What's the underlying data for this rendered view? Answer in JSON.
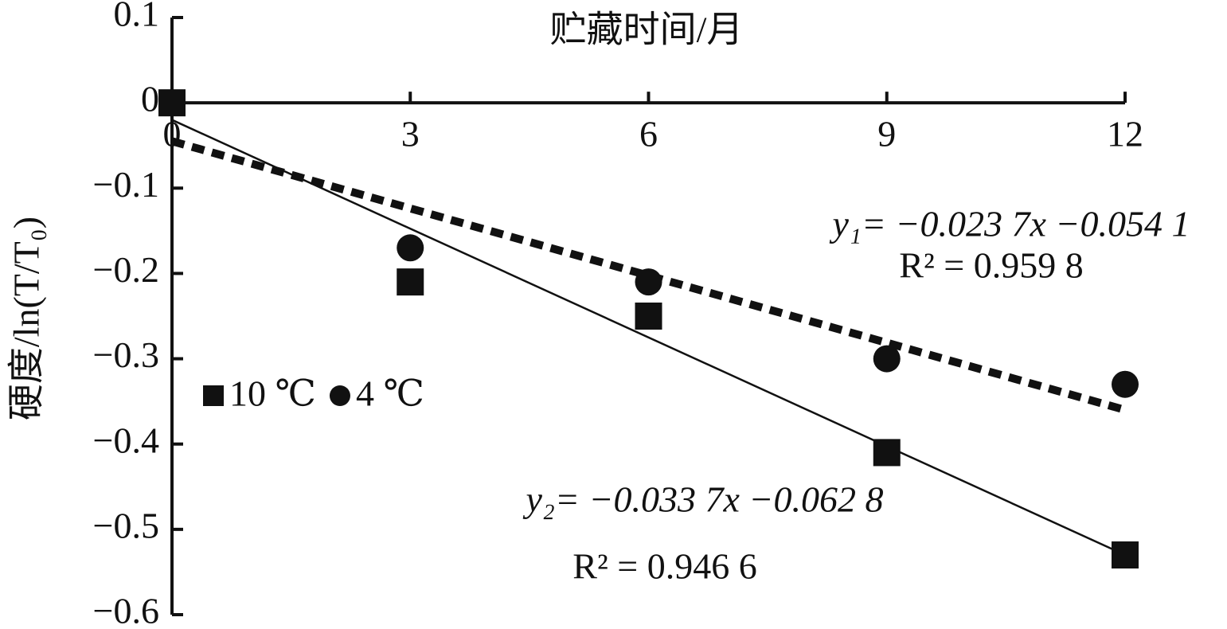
{
  "chart_data": {
    "type": "scatter",
    "xlabel": "贮藏时间/月",
    "ylabel": "硬度/ln(T/T₀)",
    "xlim": [
      0,
      12
    ],
    "xticks": [
      0,
      3,
      6,
      9,
      12
    ],
    "ylim": [
      -0.6,
      0.1
    ],
    "yticks": [
      0.1,
      0,
      {
        "value": -0.1,
        "label": "−0.1"
      },
      {
        "value": -0.2,
        "label": "−0.2"
      },
      {
        "value": -0.3,
        "label": "−0.3"
      },
      {
        "value": -0.4,
        "label": "−0.4"
      },
      {
        "value": -0.5,
        "label": "−0.5"
      },
      {
        "value": -0.6,
        "label": "−0.6"
      }
    ],
    "series": [
      {
        "name": "10 ℃",
        "color": "#111111",
        "marker": "square",
        "x": [
          0,
          3,
          6,
          9,
          12
        ],
        "values": [
          0,
          -0.21,
          -0.25,
          -0.41,
          -0.53
        ],
        "trendline": {
          "x": [
            0,
            12
          ],
          "values": [
            -0.02,
            -0.53
          ],
          "style": "solid"
        }
      },
      {
        "name": "4 ℃",
        "color": "#111111",
        "marker": "circle",
        "x": [
          0,
          3,
          6,
          9,
          12
        ],
        "values": [
          0,
          -0.17,
          -0.21,
          -0.3,
          -0.33
        ],
        "trendline": {
          "x": [
            0,
            12
          ],
          "values": [
            -0.045,
            -0.36
          ],
          "style": "dotted"
        }
      }
    ],
    "annotations": [
      "y₁= −0.023 7x −0.054 1",
      "R² = 0.959 8",
      "y₂= −0.033 7x −0.062 8",
      "R² = 0.946 6"
    ]
  }
}
